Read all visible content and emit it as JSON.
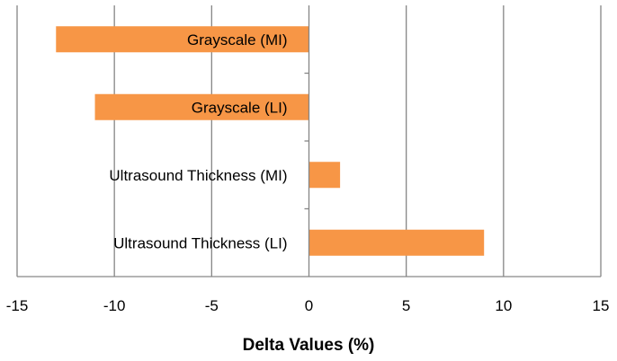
{
  "chart_data": {
    "type": "bar",
    "orientation": "horizontal",
    "categories": [
      "Grayscale (MI)",
      "Grayscale (LI)",
      "Ultrasound Thickness (MI)",
      "Ultrasound Thickness (LI)"
    ],
    "values": [
      -13,
      -11,
      1.6,
      9
    ],
    "xlabel": "Delta Values (%)",
    "xlim": [
      -15,
      15
    ],
    "xticks": [
      -15,
      -10,
      -5,
      0,
      5,
      10,
      15
    ],
    "grid": "vertical",
    "bar_color": "#F79646",
    "grid_color": "#868686"
  }
}
